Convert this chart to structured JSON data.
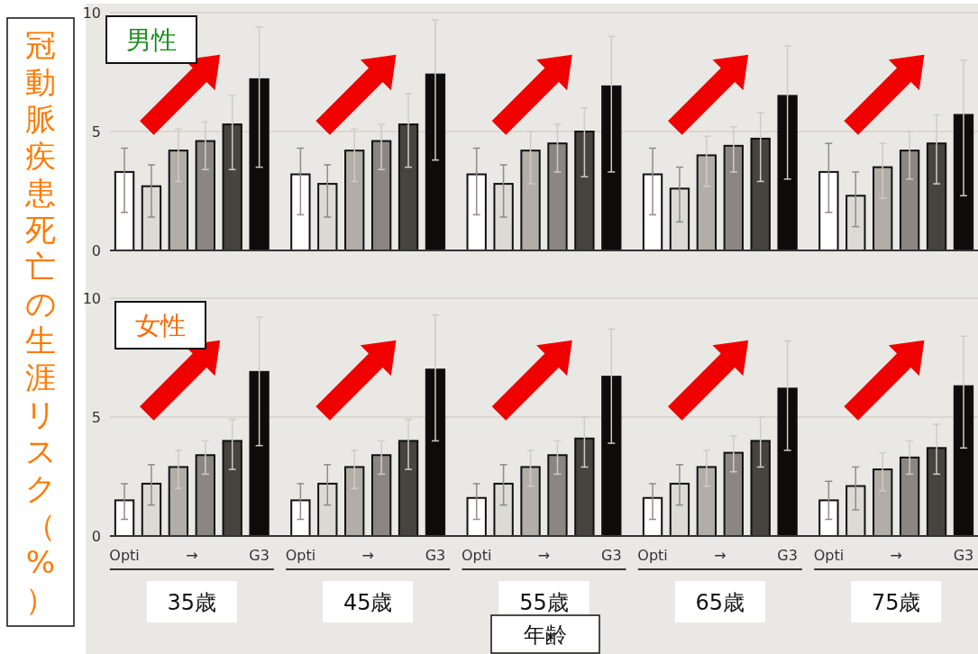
{
  "chart_data": [
    {
      "type": "bar",
      "title": "男性",
      "ylabel": "冠動脈疾患死亡の生涯リスク（%）",
      "categories": [
        null,
        null,
        null,
        null,
        null
      ],
      "tick_labels": "y",
      "ylim": [
        0,
        10
      ],
      "yticks": [
        0,
        5,
        10
      ],
      "grid": "y",
      "series": [
        {
          "color": "#ffffff",
          "values": [
            3.3,
            3.2,
            3.2,
            3.2,
            3.3
          ],
          "errors": [
            [
              1.6,
              4.3
            ],
            [
              1.5,
              4.3
            ],
            [
              1.5,
              4.3
            ],
            [
              1.5,
              4.3
            ],
            [
              1.6,
              4.5
            ]
          ]
        },
        {
          "color": "#dcdad5",
          "values": [
            2.7,
            2.8,
            2.8,
            2.6,
            2.3
          ],
          "errors": [
            [
              1.4,
              3.6
            ],
            [
              1.4,
              3.6
            ],
            [
              1.4,
              3.6
            ],
            [
              1.2,
              3.5
            ],
            [
              1.0,
              3.3
            ]
          ]
        },
        {
          "color": "#b1ada7",
          "values": [
            4.2,
            4.2,
            4.2,
            4.0,
            3.5
          ],
          "errors": [
            [
              2.9,
              5.1
            ],
            [
              2.9,
              5.1
            ],
            [
              2.8,
              5.0
            ],
            [
              2.7,
              4.8
            ],
            [
              2.2,
              4.5
            ]
          ]
        },
        {
          "color": "#8a8782",
          "values": [
            4.6,
            4.6,
            4.5,
            4.4,
            4.2
          ],
          "errors": [
            [
              3.4,
              5.4
            ],
            [
              3.4,
              5.3
            ],
            [
              3.3,
              5.3
            ],
            [
              3.3,
              5.2
            ],
            [
              3.0,
              5.0
            ]
          ]
        },
        {
          "color": "#47433f",
          "values": [
            5.3,
            5.3,
            5.0,
            4.7,
            4.5
          ],
          "errors": [
            [
              3.4,
              6.5
            ],
            [
              3.5,
              6.6
            ],
            [
              3.1,
              6.0
            ],
            [
              2.9,
              5.8
            ],
            [
              2.8,
              5.7
            ]
          ]
        },
        {
          "color": "#0e0c0a",
          "values": [
            7.2,
            7.4,
            6.9,
            6.5,
            5.7
          ],
          "errors": [
            [
              3.5,
              9.4
            ],
            [
              3.8,
              9.7
            ],
            [
              3.3,
              9.0
            ],
            [
              3.0,
              8.6
            ],
            [
              2.3,
              8.0
            ]
          ]
        }
      ]
    },
    {
      "type": "bar",
      "title": "女性",
      "xlabel": "年齢",
      "categories": [
        "35歳",
        "45歳",
        "55歳",
        "65歳",
        "75歳"
      ],
      "ylim": [
        0,
        10
      ],
      "yticks": [
        0,
        5,
        10
      ],
      "grid": "y",
      "annotations": [
        "→"
      ],
      "series": [
        {
          "name": "Opti",
          "color": "#ffffff",
          "values": [
            1.5,
            1.5,
            1.6,
            1.6,
            1.5
          ],
          "errors": [
            [
              0.7,
              2.2
            ],
            [
              0.7,
              2.2
            ],
            [
              0.7,
              2.2
            ],
            [
              0.7,
              2.2
            ],
            [
              0.7,
              2.3
            ]
          ]
        },
        {
          "color": "#dcdad5",
          "values": [
            2.2,
            2.2,
            2.2,
            2.2,
            2.1
          ],
          "errors": [
            [
              1.3,
              3.0
            ],
            [
              1.3,
              3.0
            ],
            [
              1.3,
              3.0
            ],
            [
              1.3,
              3.0
            ],
            [
              1.1,
              2.9
            ]
          ]
        },
        {
          "color": "#b1ada7",
          "values": [
            2.9,
            2.9,
            2.9,
            2.9,
            2.8
          ],
          "errors": [
            [
              2.0,
              3.6
            ],
            [
              2.0,
              3.6
            ],
            [
              2.1,
              3.6
            ],
            [
              2.1,
              3.6
            ],
            [
              1.9,
              3.5
            ]
          ]
        },
        {
          "color": "#8a8782",
          "values": [
            3.4,
            3.4,
            3.4,
            3.5,
            3.3
          ],
          "errors": [
            [
              2.6,
              4.0
            ],
            [
              2.6,
              4.0
            ],
            [
              2.6,
              4.0
            ],
            [
              2.7,
              4.2
            ],
            [
              2.6,
              4.0
            ]
          ]
        },
        {
          "color": "#47433f",
          "values": [
            4.0,
            4.0,
            4.1,
            4.0,
            3.7
          ],
          "errors": [
            [
              2.8,
              4.9
            ],
            [
              2.8,
              4.9
            ],
            [
              2.9,
              5.0
            ],
            [
              2.9,
              5.0
            ],
            [
              2.6,
              4.7
            ]
          ]
        },
        {
          "name": "G3",
          "color": "#0e0c0a",
          "values": [
            6.9,
            7.0,
            6.7,
            6.2,
            6.3
          ],
          "errors": [
            [
              3.8,
              9.2
            ],
            [
              4.0,
              9.3
            ],
            [
              3.9,
              8.7
            ],
            [
              3.6,
              8.2
            ],
            [
              3.7,
              8.4
            ]
          ]
        }
      ]
    }
  ]
}
